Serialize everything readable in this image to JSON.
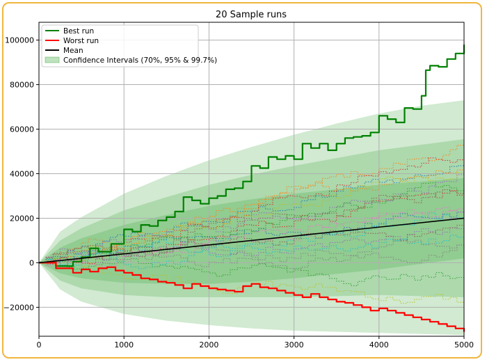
{
  "chart_data": {
    "type": "line",
    "title": "20 Sample runs",
    "xlabel": "",
    "ylabel": "",
    "xlim": [
      0,
      5000
    ],
    "ylim": [
      -33000,
      108000
    ],
    "x_ticks": [
      0,
      1000,
      2000,
      3000,
      4000,
      5000
    ],
    "y_ticks": [
      -20000,
      0,
      20000,
      40000,
      60000,
      80000,
      100000
    ],
    "grid": true,
    "legend_position": "top-left",
    "legend": [
      {
        "label": "Best run",
        "color": "#008000",
        "kind": "line"
      },
      {
        "label": "Worst run",
        "color": "#ff0000",
        "kind": "line"
      },
      {
        "label": "Mean",
        "color": "#000000",
        "kind": "line"
      },
      {
        "label": "Confidence Intervals (70%, 95% & 99.7%)",
        "color": "#2ca02c",
        "kind": "patch"
      }
    ],
    "mean": {
      "x": [
        0,
        5000
      ],
      "y": [
        0,
        20000
      ]
    },
    "confidence_bands": [
      {
        "level": "70%",
        "x": [
          0,
          250,
          500,
          1000,
          1500,
          2000,
          2500,
          3000,
          3500,
          4000,
          4500,
          5000
        ],
        "upper": [
          0,
          6800,
          11000,
          17000,
          21500,
          25500,
          28500,
          31000,
          33000,
          35000,
          36500,
          38000
        ],
        "lower": [
          0,
          -4800,
          -7000,
          -9000,
          -9500,
          -9500,
          -8500,
          -7000,
          -5000,
          -3000,
          -500,
          2000
        ]
      },
      {
        "level": "95%",
        "x": [
          0,
          250,
          500,
          1000,
          1500,
          2000,
          2500,
          3000,
          3500,
          4000,
          4500,
          5000
        ],
        "upper": [
          0,
          10000,
          15500,
          23500,
          29500,
          35000,
          39500,
          43500,
          47000,
          50500,
          53000,
          55500
        ],
        "lower": [
          0,
          -8000,
          -11500,
          -14500,
          -15500,
          -15500,
          -15500,
          -15500,
          -15000,
          -14500,
          -15000,
          -15500
        ]
      },
      {
        "level": "99.7%",
        "x": [
          0,
          250,
          500,
          1000,
          1500,
          2000,
          2500,
          3000,
          3500,
          4000,
          4500,
          5000
        ],
        "upper": [
          0,
          14000,
          20500,
          31000,
          39000,
          46000,
          52000,
          57500,
          62500,
          67000,
          70500,
          73000
        ],
        "lower": [
          0,
          -12000,
          -17500,
          -23000,
          -26000,
          -28000,
          -29500,
          -30500,
          -31000,
          -31500,
          -32000,
          -32500
        ]
      }
    ],
    "series": [
      {
        "name": "Best run",
        "color": "#008000",
        "x": [
          0,
          200,
          400,
          500,
          600,
          700,
          850,
          1000,
          1100,
          1200,
          1300,
          1400,
          1500,
          1600,
          1700,
          1800,
          1900,
          2000,
          2100,
          2200,
          2300,
          2400,
          2500,
          2600,
          2700,
          2800,
          2900,
          3000,
          3100,
          3200,
          3300,
          3400,
          3500,
          3600,
          3700,
          3800,
          3900,
          4000,
          4100,
          4200,
          4300,
          4400,
          4500,
          4550,
          4600,
          4700,
          4800,
          4900,
          5000
        ],
        "y": [
          0,
          -1500,
          500,
          2500,
          6500,
          5000,
          8500,
          15000,
          14000,
          17000,
          16500,
          19000,
          20500,
          23000,
          29500,
          28000,
          26500,
          29000,
          30000,
          33000,
          33500,
          36500,
          43500,
          42500,
          47500,
          46500,
          48000,
          46500,
          53500,
          51500,
          53500,
          50500,
          53500,
          56000,
          56500,
          57000,
          58500,
          66000,
          64500,
          63000,
          69500,
          69000,
          75000,
          86500,
          88500,
          88000,
          91500,
          94000,
          98000
        ]
      },
      {
        "name": "Worst run",
        "color": "#ff0000",
        "x": [
          0,
          200,
          400,
          500,
          600,
          700,
          800,
          900,
          1000,
          1100,
          1200,
          1300,
          1400,
          1500,
          1600,
          1700,
          1800,
          1900,
          2000,
          2100,
          2200,
          2300,
          2400,
          2500,
          2600,
          2700,
          2800,
          2900,
          3000,
          3100,
          3200,
          3300,
          3400,
          3500,
          3600,
          3700,
          3800,
          3900,
          4000,
          4100,
          4200,
          4300,
          4400,
          4500,
          4600,
          4700,
          4800,
          4900,
          5000
        ],
        "y": [
          0,
          -2500,
          -4500,
          -3000,
          -4000,
          -2500,
          -2000,
          -3500,
          -4500,
          -5500,
          -7000,
          -7500,
          -8500,
          -9000,
          -10000,
          -11500,
          -9500,
          -10500,
          -11500,
          -12000,
          -12500,
          -13000,
          -10500,
          -9500,
          -11000,
          -11500,
          -12500,
          -13500,
          -14500,
          -15500,
          -14000,
          -15500,
          -16500,
          -17500,
          -18000,
          -19000,
          -20000,
          -21500,
          -20500,
          -21500,
          -22500,
          -23500,
          -24500,
          -25500,
          -26500,
          -27500,
          -28500,
          -29500,
          -31000
        ]
      }
    ],
    "sample_runs_label": "20 Sample runs",
    "sample_runs": [
      {
        "color": "#1f77b4",
        "end": 44000
      },
      {
        "color": "#ff7f0e",
        "end": 52000
      },
      {
        "color": "#2ca02c",
        "end": -6000
      },
      {
        "color": "#d62728",
        "end": 30000
      },
      {
        "color": "#9467bd",
        "end": 14000
      },
      {
        "color": "#8c564b",
        "end": 33000
      },
      {
        "color": "#e377c2",
        "end": 26000
      },
      {
        "color": "#7f7f7f",
        "end": 8000
      },
      {
        "color": "#bcbd22",
        "end": -18000
      },
      {
        "color": "#17becf",
        "end": 18000
      },
      {
        "color": "#1f77b4",
        "end": 22000
      },
      {
        "color": "#ff7f0e",
        "end": 46000
      },
      {
        "color": "#2ca02c",
        "end": 36000
      },
      {
        "color": "#d62728",
        "end": 50000
      },
      {
        "color": "#9467bd",
        "end": 40000
      },
      {
        "color": "#8c564b",
        "end": 16000
      },
      {
        "color": "#e377c2",
        "end": 24000
      },
      {
        "color": "#7f7f7f",
        "end": 4000
      },
      {
        "color": "#bcbd22",
        "end": 42000
      },
      {
        "color": "#17becf",
        "end": 12000
      }
    ]
  }
}
